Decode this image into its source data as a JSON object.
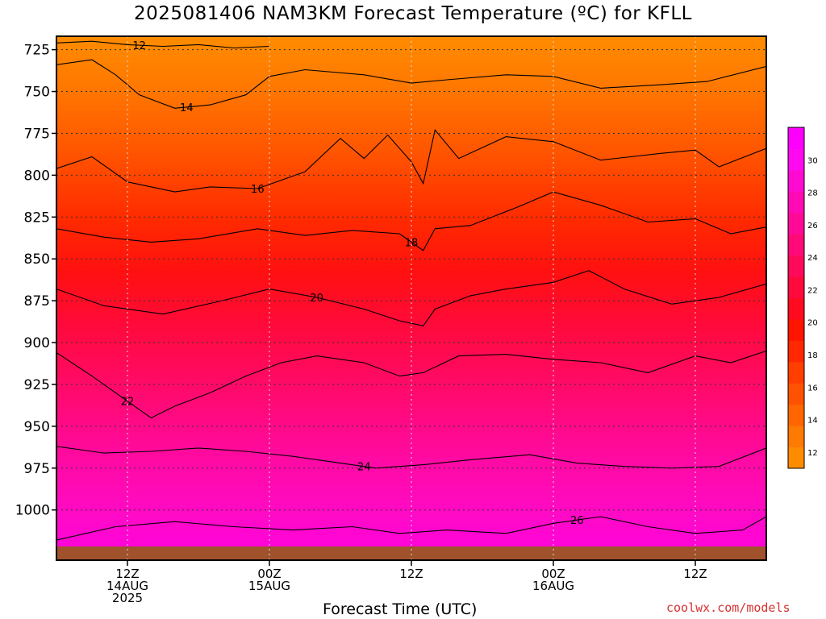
{
  "chart_data": {
    "type": "heatmap",
    "title": "2025081406 NAM3KM Forecast Temperature (ºC) for KFLL",
    "xlabel": "Forecast Time (UTC)",
    "ylabel": "",
    "credit": "coolwx.com/models",
    "x_ticks": [
      {
        "hours": 6,
        "lines": [
          "12Z",
          "14AUG",
          "2025"
        ]
      },
      {
        "hours": 18,
        "lines": [
          "00Z",
          "15AUG"
        ]
      },
      {
        "hours": 30,
        "lines": [
          "12Z"
        ]
      },
      {
        "hours": 42,
        "lines": [
          "00Z",
          "16AUG"
        ]
      },
      {
        "hours": 54,
        "lines": [
          "12Z"
        ]
      }
    ],
    "xlim_hours": [
      0,
      60
    ],
    "y_ticks": [
      725,
      750,
      775,
      800,
      825,
      850,
      875,
      900,
      925,
      950,
      975,
      1000
    ],
    "ylim": [
      1030,
      717
    ],
    "grid": true,
    "colorbar": {
      "labels": [
        12,
        14,
        16,
        18,
        20,
        22,
        24,
        26,
        28,
        30
      ],
      "levels": [
        11,
        12,
        13,
        14,
        15,
        16,
        17,
        18,
        19,
        20,
        21,
        22,
        23,
        24,
        25,
        26,
        27,
        28,
        29,
        30,
        31,
        32
      ],
      "colors": [
        "#ff8c00",
        "#ff7a00",
        "#ff6600",
        "#ff5200",
        "#ff3e00",
        "#ff2800",
        "#ff1400",
        "#ff0a1e",
        "#ff0a3c",
        "#ff0a5a",
        "#ff0a78",
        "#ff0a96",
        "#ff0ab4",
        "#ff0ad2",
        "#ff0af0",
        "#ff00ff"
      ]
    },
    "contours": [
      {
        "level": 12,
        "label_hour": 7,
        "points": [
          [
            0,
            721
          ],
          [
            3,
            720
          ],
          [
            6,
            722
          ],
          [
            9,
            723
          ],
          [
            12,
            722
          ],
          [
            15,
            724
          ],
          [
            18,
            723
          ]
        ]
      },
      {
        "level": 14,
        "label_hour": 11,
        "points": [
          [
            0,
            734
          ],
          [
            3,
            731
          ],
          [
            5,
            740
          ],
          [
            7,
            752
          ],
          [
            10,
            760
          ],
          [
            13,
            758
          ],
          [
            16,
            752
          ],
          [
            18,
            741
          ],
          [
            21,
            737
          ],
          [
            26,
            740
          ],
          [
            30,
            745
          ],
          [
            33,
            743
          ],
          [
            38,
            740
          ],
          [
            42,
            741
          ],
          [
            46,
            748
          ],
          [
            51,
            746
          ],
          [
            55,
            744
          ],
          [
            60,
            735
          ]
        ]
      },
      {
        "level": 16,
        "label_hour": 17,
        "points": [
          [
            0,
            796
          ],
          [
            3,
            789
          ],
          [
            6,
            804
          ],
          [
            10,
            810
          ],
          [
            13,
            807
          ],
          [
            17,
            808
          ],
          [
            21,
            798
          ],
          [
            24,
            778
          ],
          [
            26,
            790
          ],
          [
            28,
            776
          ],
          [
            30,
            792
          ],
          [
            31,
            805
          ],
          [
            32,
            773
          ],
          [
            34,
            790
          ],
          [
            38,
            777
          ],
          [
            42,
            780
          ],
          [
            46,
            791
          ],
          [
            51,
            787
          ],
          [
            54,
            785
          ],
          [
            56,
            795
          ],
          [
            60,
            784
          ]
        ]
      },
      {
        "level": 18,
        "label_hour": 30,
        "points": [
          [
            0,
            832
          ],
          [
            4,
            837
          ],
          [
            8,
            840
          ],
          [
            12,
            838
          ],
          [
            17,
            832
          ],
          [
            21,
            836
          ],
          [
            25,
            833
          ],
          [
            29,
            835
          ],
          [
            31,
            845
          ],
          [
            32,
            832
          ],
          [
            35,
            830
          ],
          [
            39,
            819
          ],
          [
            42,
            810
          ],
          [
            46,
            818
          ],
          [
            50,
            828
          ],
          [
            54,
            826
          ],
          [
            57,
            835
          ],
          [
            60,
            831
          ]
        ]
      },
      {
        "level": 20,
        "label_hour": 22,
        "points": [
          [
            0,
            868
          ],
          [
            4,
            878
          ],
          [
            9,
            883
          ],
          [
            14,
            875
          ],
          [
            18,
            868
          ],
          [
            22,
            873
          ],
          [
            26,
            880
          ],
          [
            29,
            887
          ],
          [
            31,
            890
          ],
          [
            32,
            880
          ],
          [
            35,
            872
          ],
          [
            38,
            868
          ],
          [
            42,
            864
          ],
          [
            45,
            857
          ],
          [
            48,
            868
          ],
          [
            52,
            877
          ],
          [
            56,
            873
          ],
          [
            60,
            865
          ]
        ]
      },
      {
        "level": 22,
        "label_hour": 6,
        "points": [
          [
            0,
            906
          ],
          [
            3,
            920
          ],
          [
            6,
            935
          ],
          [
            8,
            945
          ],
          [
            10,
            938
          ],
          [
            13,
            930
          ],
          [
            16,
            920
          ],
          [
            19,
            912
          ],
          [
            22,
            908
          ],
          [
            26,
            912
          ],
          [
            29,
            920
          ],
          [
            31,
            918
          ],
          [
            34,
            908
          ],
          [
            38,
            907
          ],
          [
            42,
            910
          ],
          [
            46,
            912
          ],
          [
            50,
            918
          ],
          [
            54,
            908
          ],
          [
            57,
            912
          ],
          [
            60,
            905
          ]
        ]
      },
      {
        "level": 24,
        "label_hour": 26,
        "points": [
          [
            0,
            962
          ],
          [
            4,
            966
          ],
          [
            8,
            965
          ],
          [
            12,
            963
          ],
          [
            16,
            965
          ],
          [
            20,
            968
          ],
          [
            24,
            972
          ],
          [
            27,
            975
          ],
          [
            31,
            973
          ],
          [
            35,
            970
          ],
          [
            40,
            967
          ],
          [
            44,
            972
          ],
          [
            48,
            974
          ],
          [
            52,
            975
          ],
          [
            56,
            974
          ],
          [
            60,
            963
          ]
        ]
      },
      {
        "level": 26,
        "label_hour": 44,
        "points": [
          [
            0,
            1018
          ],
          [
            5,
            1010
          ],
          [
            10,
            1007
          ],
          [
            15,
            1010
          ],
          [
            20,
            1012
          ],
          [
            25,
            1010
          ],
          [
            29,
            1014
          ],
          [
            33,
            1012
          ],
          [
            38,
            1014
          ],
          [
            42,
            1008
          ],
          [
            46,
            1004
          ],
          [
            50,
            1010
          ],
          [
            54,
            1014
          ],
          [
            58,
            1012
          ],
          [
            60,
            1004
          ]
        ]
      }
    ]
  }
}
